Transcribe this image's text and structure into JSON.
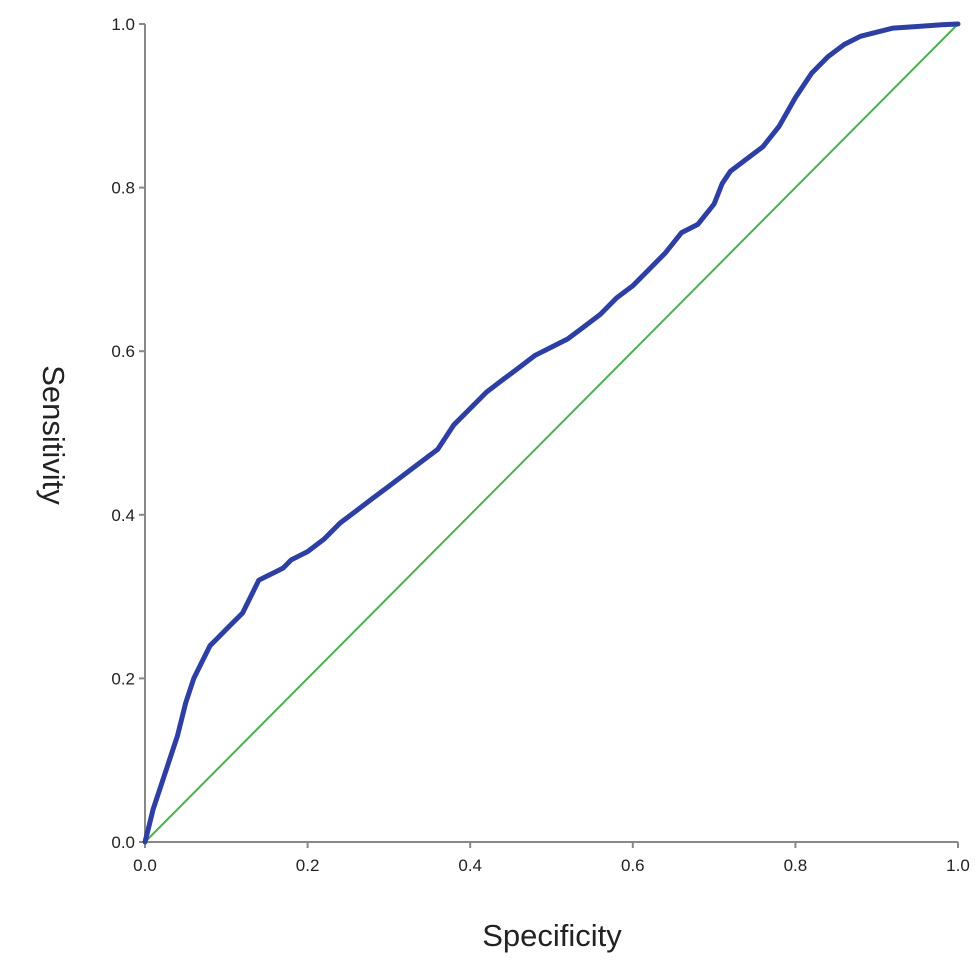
{
  "chart_data": {
    "type": "line",
    "title": "",
    "xlabel": "Specificity",
    "ylabel": "Sensitivity",
    "xlim": [
      0,
      1
    ],
    "ylim": [
      0,
      1
    ],
    "xticks": [
      "0.0",
      "0.2",
      "0.4",
      "0.6",
      "0.8",
      "1.0"
    ],
    "yticks": [
      "0.0",
      "0.2",
      "0.4",
      "0.6",
      "0.8",
      "1.0"
    ],
    "grid": false,
    "legend": "none",
    "colors": {
      "roc": "#2e3fa3",
      "reference": "#4caf50",
      "axis": "#888888"
    },
    "series": [
      {
        "x": [
          0,
          0.005,
          0.01,
          0.02,
          0.03,
          0.04,
          0.05,
          0.06,
          0.07,
          0.08,
          0.09,
          0.1,
          0.11,
          0.12,
          0.13,
          0.14,
          0.15,
          0.16,
          0.17,
          0.18,
          0.2,
          0.22,
          0.24,
          0.26,
          0.28,
          0.3,
          0.32,
          0.34,
          0.36,
          0.38,
          0.4,
          0.42,
          0.44,
          0.46,
          0.48,
          0.5,
          0.52,
          0.54,
          0.56,
          0.58,
          0.6,
          0.62,
          0.64,
          0.66,
          0.68,
          0.7,
          0.71,
          0.72,
          0.74,
          0.76,
          0.78,
          0.8,
          0.82,
          0.84,
          0.86,
          0.88,
          0.9,
          0.92,
          0.95,
          0.98,
          1.0
        ],
        "values": [
          0,
          0.02,
          0.04,
          0.07,
          0.1,
          0.13,
          0.17,
          0.2,
          0.22,
          0.24,
          0.25,
          0.26,
          0.27,
          0.28,
          0.3,
          0.32,
          0.325,
          0.33,
          0.335,
          0.345,
          0.355,
          0.37,
          0.39,
          0.405,
          0.42,
          0.435,
          0.45,
          0.465,
          0.48,
          0.51,
          0.53,
          0.55,
          0.565,
          0.58,
          0.595,
          0.605,
          0.615,
          0.63,
          0.645,
          0.665,
          0.68,
          0.7,
          0.72,
          0.745,
          0.755,
          0.78,
          0.805,
          0.82,
          0.835,
          0.85,
          0.875,
          0.91,
          0.94,
          0.96,
          0.975,
          0.985,
          0.99,
          0.995,
          0.997,
          0.999,
          1.0
        ]
      },
      {
        "x": [
          0,
          1
        ],
        "values": [
          0,
          1
        ]
      }
    ]
  }
}
